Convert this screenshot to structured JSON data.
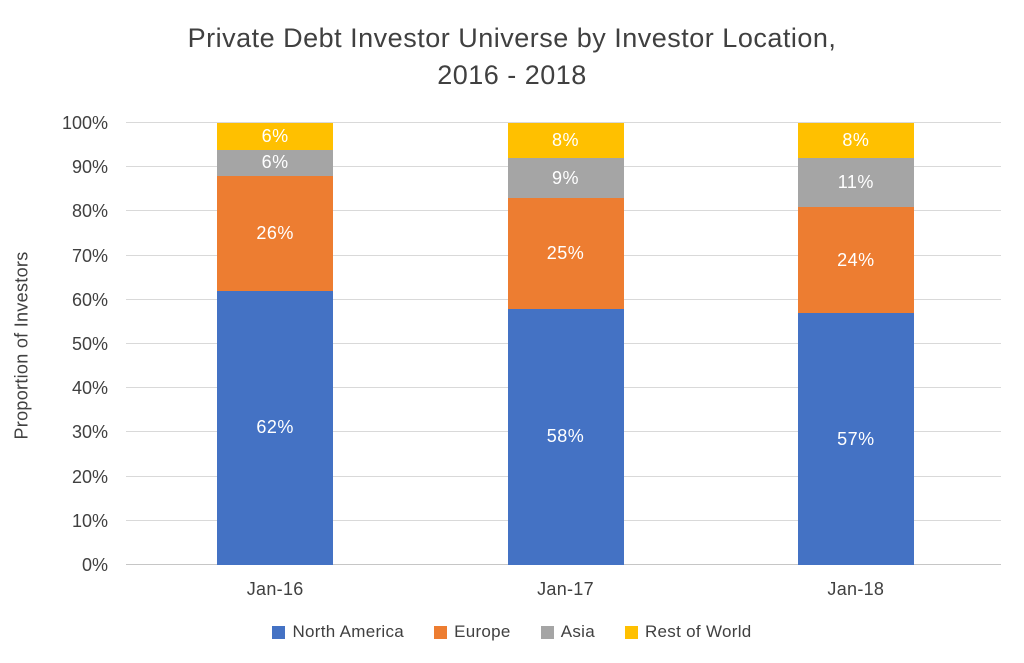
{
  "chart_data": {
    "type": "bar",
    "stacked": true,
    "title": "Private Debt Investor Universe by Investor Location,\n2016 - 2018",
    "ylabel": "Proportion of Investors",
    "xlabel": "",
    "categories": [
      "Jan-16",
      "Jan-17",
      "Jan-18"
    ],
    "series": [
      {
        "name": "North America",
        "color": "#4472C4",
        "values": [
          62,
          58,
          57
        ]
      },
      {
        "name": "Europe",
        "color": "#ED7D31",
        "values": [
          26,
          25,
          24
        ]
      },
      {
        "name": "Asia",
        "color": "#A5A5A5",
        "values": [
          6,
          9,
          11
        ]
      },
      {
        "name": "Rest of World",
        "color": "#FFC000",
        "values": [
          6,
          8,
          8
        ]
      }
    ],
    "ylim": [
      0,
      100
    ],
    "ytick_step": 10,
    "ytick_suffix": "%",
    "data_label_suffix": "%",
    "data_label_color": "#FFFFFF",
    "grid": true,
    "gridline_color": "#D9D9D9",
    "axis_line_color": "#C6C6C6",
    "text_color": "#404040",
    "legend_position": "bottom"
  }
}
